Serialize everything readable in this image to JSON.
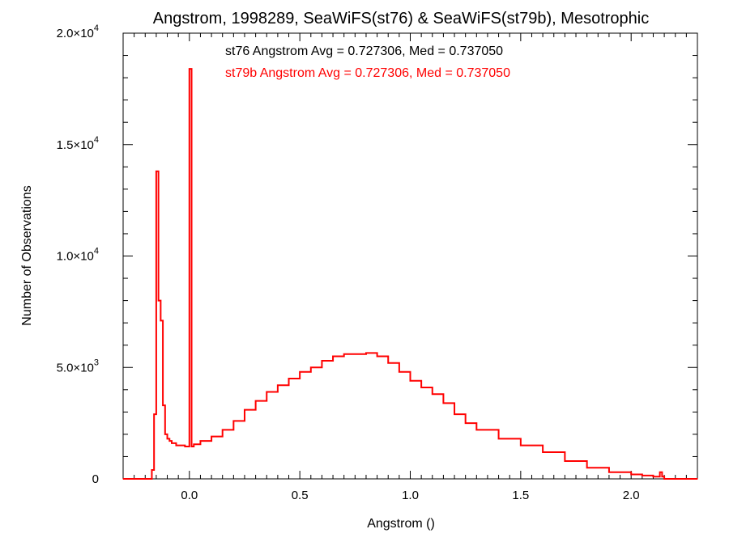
{
  "chart_data": {
    "type": "line",
    "title": "Angstrom, 1998289, SeaWiFS(st76) & SeaWiFS(st79b), Mesotrophic",
    "xlabel": "Angstrom ()",
    "ylabel": "Number of Observations",
    "xlim": [
      -0.3,
      2.3
    ],
    "ylim": [
      0,
      20000
    ],
    "x_ticks": [
      {
        "value": 0.0,
        "label": "0.0"
      },
      {
        "value": 0.5,
        "label": "0.5"
      },
      {
        "value": 1.0,
        "label": "1.0"
      },
      {
        "value": 1.5,
        "label": "1.5"
      },
      {
        "value": 2.0,
        "label": "2.0"
      }
    ],
    "y_ticks": [
      {
        "value": 0,
        "mantissa": "0",
        "exponent": ""
      },
      {
        "value": 5000,
        "mantissa": "5.0×10",
        "exponent": "3"
      },
      {
        "value": 10000,
        "mantissa": "1.0×10",
        "exponent": "4"
      },
      {
        "value": 15000,
        "mantissa": "1.5×10",
        "exponent": "4"
      },
      {
        "value": 20000,
        "mantissa": "2.0×10",
        "exponent": "4"
      }
    ],
    "grid": false,
    "annotations": [
      {
        "text": "st76 Angstrom Avg = 0.727306, Med = 0.737050",
        "color": "#000000"
      },
      {
        "text": "st79b Angstrom Avg = 0.727306, Med = 0.737050",
        "color": "#ff0000"
      }
    ],
    "series": [
      {
        "color": "#ff0000",
        "style": "step",
        "x": [
          -0.3,
          -0.2,
          -0.18,
          -0.17,
          -0.16,
          -0.15,
          -0.14,
          -0.13,
          -0.12,
          -0.11,
          -0.1,
          -0.09,
          -0.08,
          -0.06,
          -0.04,
          -0.02,
          -0.01,
          0.0,
          0.01,
          0.02,
          0.05,
          0.1,
          0.15,
          0.2,
          0.25,
          0.3,
          0.35,
          0.4,
          0.45,
          0.5,
          0.55,
          0.6,
          0.65,
          0.7,
          0.75,
          0.8,
          0.85,
          0.9,
          0.95,
          1.0,
          1.05,
          1.1,
          1.15,
          1.2,
          1.25,
          1.3,
          1.4,
          1.5,
          1.6,
          1.7,
          1.8,
          1.9,
          2.0,
          2.05,
          2.1,
          2.13,
          2.14,
          2.15,
          2.2,
          2.3
        ],
        "values": [
          0,
          0,
          0,
          400,
          2900,
          13800,
          8000,
          7100,
          3300,
          2000,
          1800,
          1700,
          1600,
          1500,
          1500,
          1450,
          1450,
          18400,
          1450,
          1550,
          1700,
          1900,
          2200,
          2600,
          3100,
          3500,
          3900,
          4200,
          4500,
          4800,
          5000,
          5300,
          5500,
          5600,
          5600,
          5650,
          5500,
          5200,
          4800,
          4400,
          4100,
          3800,
          3400,
          2900,
          2500,
          2200,
          1800,
          1500,
          1200,
          800,
          500,
          300,
          200,
          150,
          100,
          300,
          100,
          0,
          0,
          0
        ]
      }
    ]
  }
}
